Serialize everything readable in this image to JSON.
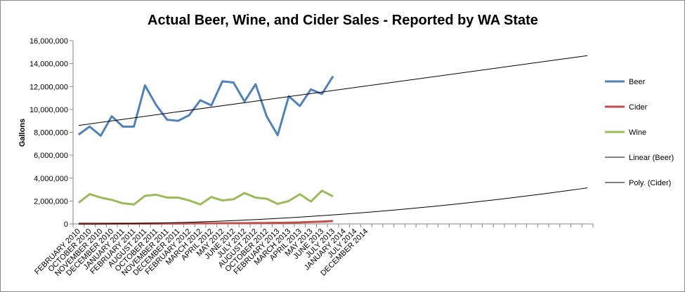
{
  "chart_data": {
    "type": "line",
    "title": "Actual Beer, Wine, and Cider Sales - Reported by WA State",
    "ylabel": "Gallons",
    "xlabel": "",
    "ylim": [
      0,
      16000000
    ],
    "y_ticks": [
      0,
      2000000,
      4000000,
      6000000,
      8000000,
      10000000,
      12000000,
      14000000,
      16000000
    ],
    "y_tick_labels": [
      "0",
      "2,000,000",
      "4,000,000",
      "6,000,000",
      "8,000,000",
      "10,000,000",
      "12,000,000",
      "14,000,000",
      "16,000,000"
    ],
    "x_tick_labels": [
      "FEBRUARY 2010",
      "OCTOBER 2010",
      "NOVEMBER 2010",
      "DECEMBER 2010",
      "JANUARY 2011",
      "FEBRUARY 2011",
      "AUGUST 2011",
      "OCTOBER 2011",
      "NOVEMBER 2011",
      "DECEMBER 2011",
      "FEBRUARY 2012",
      "MARCH 2012",
      "APRIL 2012",
      "MAY 2012",
      "JUNE 2012",
      "JULY 2012",
      "AUGUST 2012",
      "OCTOBER 2012",
      "FEBRUARY 2013",
      "MARCH 2013",
      "APRIL 2013",
      "MAY 2013",
      "JUNE 2013",
      "JULY 2013",
      "JANUARY 2014",
      "JULY 2014",
      "DECEMBER 2014"
    ],
    "category_slots": 47,
    "grid": false,
    "legend_position": "right",
    "series": [
      {
        "name": "Beer",
        "color": "#4f81bd",
        "values": [
          7800000,
          8500000,
          7700000,
          9400000,
          8500000,
          8500000,
          12100000,
          10400000,
          9100000,
          9000000,
          9500000,
          10800000,
          10350000,
          12450000,
          12350000,
          10700000,
          12200000,
          9400000,
          7750000,
          11150000,
          10300000,
          11750000,
          11350000,
          12900000
        ]
      },
      {
        "name": "Cider",
        "color": "#c0504d",
        "values": [
          20000,
          20000,
          20000,
          25000,
          25000,
          25000,
          30000,
          30000,
          35000,
          40000,
          45000,
          50000,
          55000,
          60000,
          60000,
          70000,
          75000,
          80000,
          90000,
          110000,
          130000,
          170000,
          200000,
          250000
        ]
      },
      {
        "name": "Wine",
        "color": "#9bbb59",
        "values": [
          1850000,
          2600000,
          2300000,
          2100000,
          1800000,
          1700000,
          2450000,
          2550000,
          2300000,
          2300000,
          2050000,
          1700000,
          2350000,
          2050000,
          2150000,
          2700000,
          2300000,
          2200000,
          1750000,
          2000000,
          2600000,
          1950000,
          2900000,
          2400000
        ]
      },
      {
        "name": "Linear (Beer)",
        "color": "#000000",
        "trendline": "linear",
        "start_value": 8600000,
        "end_value": 14700000
      },
      {
        "name": "Poly. (Cider)",
        "color": "#000000",
        "trendline": "polynomial",
        "start_value": 0,
        "end_value": 3150000
      }
    ]
  }
}
